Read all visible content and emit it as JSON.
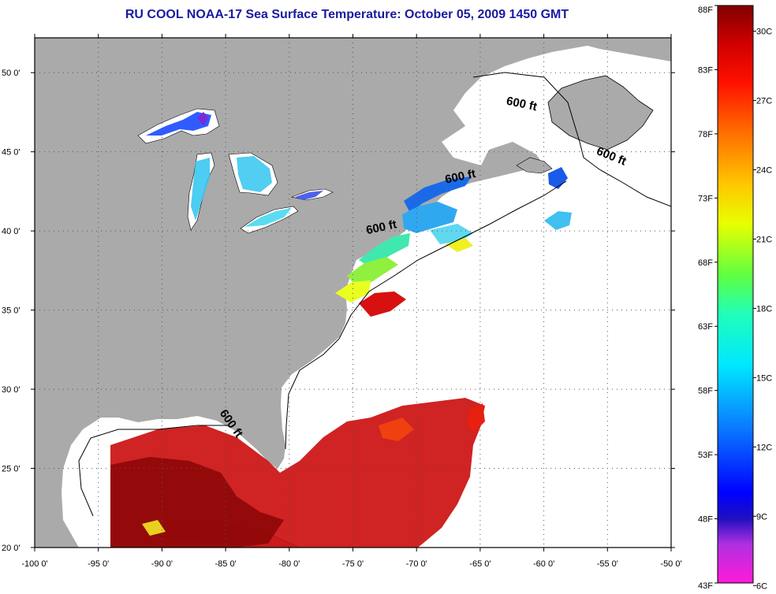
{
  "title": "RU COOL  NOAA-17  Sea Surface Temperature:  October 05, 2009 1450 GMT",
  "colors": {
    "land": "#aaaaaa",
    "ocean_cloud": "#ffffff",
    "grid": "#555555",
    "frame": "#000000",
    "title": "#1a1aa0"
  },
  "map": {
    "lon_range": [
      -100,
      -50
    ],
    "lat_range": [
      20,
      52.2
    ],
    "lon_ticks": [
      {
        "value": -100,
        "label": "-100 0'"
      },
      {
        "value": -95,
        "label": "-95 0'"
      },
      {
        "value": -90,
        "label": "-90 0'"
      },
      {
        "value": -85,
        "label": "-85 0'"
      },
      {
        "value": -80,
        "label": "-80 0'"
      },
      {
        "value": -75,
        "label": "-75 0'"
      },
      {
        "value": -70,
        "label": "-70 0'"
      },
      {
        "value": -65,
        "label": "-65 0'"
      },
      {
        "value": -60,
        "label": "-60 0'"
      },
      {
        "value": -55,
        "label": "-55 0'"
      },
      {
        "value": -50,
        "label": "-50 0'"
      }
    ],
    "lat_ticks": [
      {
        "value": 20,
        "label": "20 0'"
      },
      {
        "value": 25,
        "label": "25 0'"
      },
      {
        "value": 30,
        "label": "30 0'"
      },
      {
        "value": 35,
        "label": "35 0'"
      },
      {
        "value": 40,
        "label": "40 0'"
      },
      {
        "value": 45,
        "label": "45 0'"
      },
      {
        "value": 50,
        "label": "50 0'"
      }
    ],
    "isobath_labels": [
      {
        "text": "600 ft",
        "lon": -61.8,
        "lat": 47.8,
        "rotate": 12
      },
      {
        "text": "600 ft",
        "lon": -54.8,
        "lat": 44.5,
        "rotate": 22
      },
      {
        "text": "600 ft",
        "lon": -66.5,
        "lat": 43.2,
        "rotate": -12
      },
      {
        "text": "600 ft",
        "lon": -72.7,
        "lat": 40.0,
        "rotate": -12
      },
      {
        "text": "600 ft",
        "lon": -84.8,
        "lat": 27.7,
        "rotate": 55
      }
    ]
  },
  "colorbar": {
    "fahrenheit_labels": [
      {
        "value": 88,
        "label": "88F"
      },
      {
        "value": 83,
        "label": "83F"
      },
      {
        "value": 78,
        "label": "78F"
      },
      {
        "value": 73,
        "label": "73F"
      },
      {
        "value": 68,
        "label": "68F"
      },
      {
        "value": 63,
        "label": "63F"
      },
      {
        "value": 58,
        "label": "58F"
      },
      {
        "value": 53,
        "label": "53F"
      },
      {
        "value": 48,
        "label": "48F"
      },
      {
        "value": 43,
        "label": "43F"
      }
    ],
    "celsius_labels": [
      {
        "value": 30,
        "label": "30C"
      },
      {
        "value": 27,
        "label": "27C"
      },
      {
        "value": 24,
        "label": "24C"
      },
      {
        "value": 21,
        "label": "21C"
      },
      {
        "value": 18,
        "label": "18C"
      },
      {
        "value": 15,
        "label": "15C"
      },
      {
        "value": 12,
        "label": "12C"
      },
      {
        "value": 9,
        "label": "9C"
      },
      {
        "value": 6,
        "label": "6C"
      }
    ],
    "range_f": [
      43,
      88
    ],
    "stops": [
      {
        "f": 43,
        "color": "#ff1ad9"
      },
      {
        "f": 46,
        "color": "#b030e0"
      },
      {
        "f": 48,
        "color": "#2010c0"
      },
      {
        "f": 50,
        "color": "#0000ff"
      },
      {
        "f": 55,
        "color": "#0a78ff"
      },
      {
        "f": 60,
        "color": "#00e8ff"
      },
      {
        "f": 64,
        "color": "#20ffb8"
      },
      {
        "f": 67,
        "color": "#60ff40"
      },
      {
        "f": 71,
        "color": "#e8ff00"
      },
      {
        "f": 74,
        "color": "#ffc800"
      },
      {
        "f": 78,
        "color": "#ff7000"
      },
      {
        "f": 82,
        "color": "#ff1000"
      },
      {
        "f": 85,
        "color": "#d00000"
      },
      {
        "f": 88,
        "color": "#800000"
      }
    ]
  }
}
